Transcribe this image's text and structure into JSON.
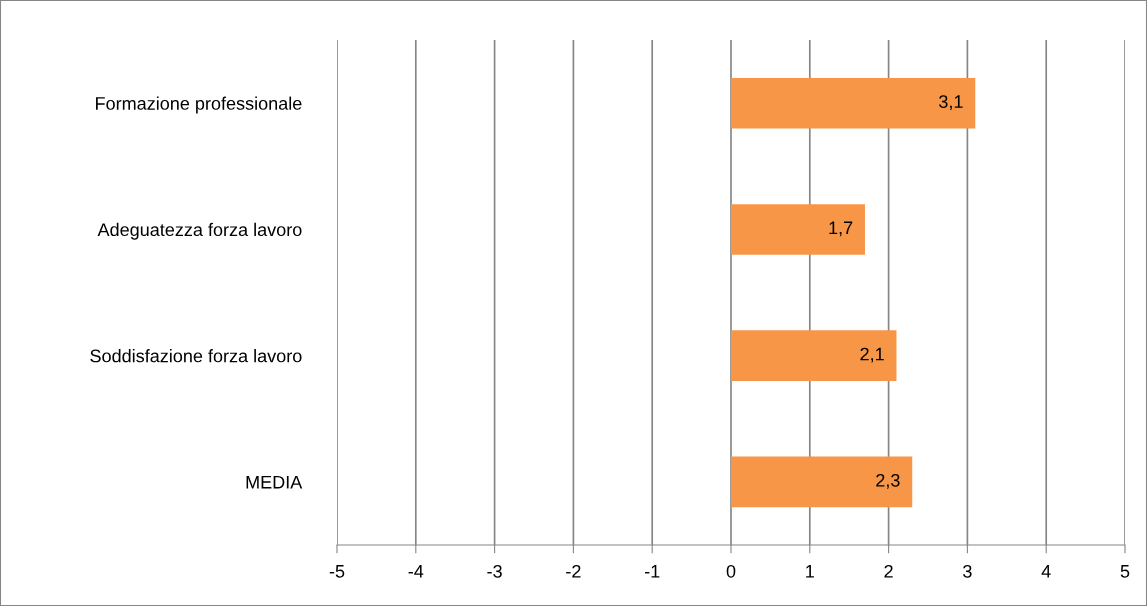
{
  "chart_data": {
    "type": "bar",
    "orientation": "horizontal",
    "categories": [
      "Formazione professionale",
      "Adeguatezza forza lavoro",
      "Soddisfazione forza lavoro",
      "MEDIA"
    ],
    "values": [
      3.1,
      1.7,
      2.1,
      2.3
    ],
    "value_labels": [
      "3,1",
      "1,7",
      "2,1",
      "2,3"
    ],
    "color": "#f79646",
    "xlim": [
      -5,
      5
    ],
    "xticks": [
      -5,
      -4,
      -3,
      -2,
      -1,
      0,
      1,
      2,
      3,
      4,
      5
    ],
    "grid": "x",
    "legend": false
  }
}
